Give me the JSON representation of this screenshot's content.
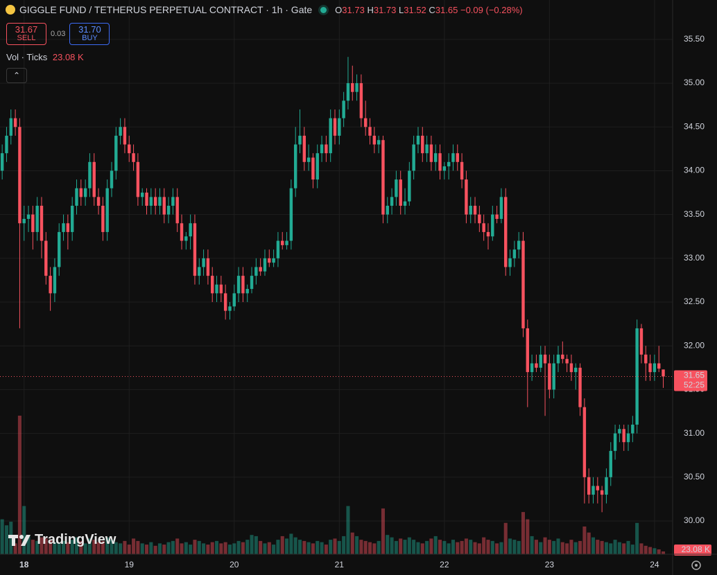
{
  "header": {
    "symbol": "GIGGLE FUND / TETHERUS PERPETUAL CONTRACT · 1h · Gate",
    "o_key": "O",
    "o": 31.73,
    "h_key": "H",
    "h": 31.73,
    "l_key": "L",
    "l": 31.52,
    "c_key": "C",
    "c": 31.65,
    "change": "−0.09 (−0.28%)"
  },
  "trade_panel": {
    "sell_price": "31.67",
    "sell": "SELL",
    "spread": "0.03",
    "buy_price": "31.70",
    "buy": "BUY"
  },
  "volume_legend": {
    "label": "Vol · Ticks",
    "value": "23.08 K"
  },
  "watermark": "TradingView",
  "chart_data": {
    "type": "candlestick",
    "up_color": "#22ab94",
    "down_color": "#f7525f",
    "grid": true,
    "ylim": [
      29.62,
      35.95
    ],
    "yticks": [
      {
        "value": 30,
        "label": "30.00"
      },
      {
        "value": 30.5,
        "label": "30.50"
      },
      {
        "value": 31,
        "label": "31.00"
      },
      {
        "value": 31.5,
        "label": "31.50"
      },
      {
        "value": 32,
        "label": "32.00"
      },
      {
        "value": 32.5,
        "label": "32.50"
      },
      {
        "value": 33,
        "label": "33.00"
      },
      {
        "value": 33.5,
        "label": "33.50"
      },
      {
        "value": 34,
        "label": "34.00"
      },
      {
        "value": 34.5,
        "label": "34.50"
      },
      {
        "value": 35,
        "label": "35.00"
      },
      {
        "value": 35.5,
        "label": "35.50"
      }
    ],
    "last_price": 31.65,
    "countdown": "52:25",
    "last_volume_label": "23.08 K",
    "categories": [
      null,
      null,
      null,
      null,
      null,
      "18",
      null,
      null,
      null,
      null,
      null,
      null,
      null,
      null,
      null,
      null,
      null,
      null,
      null,
      null,
      null,
      null,
      null,
      null,
      null,
      null,
      null,
      null,
      null,
      "19",
      null,
      null,
      null,
      null,
      null,
      null,
      null,
      null,
      null,
      null,
      null,
      null,
      null,
      null,
      null,
      null,
      null,
      null,
      null,
      null,
      null,
      null,
      null,
      "20",
      null,
      null,
      null,
      null,
      null,
      null,
      null,
      null,
      null,
      null,
      null,
      null,
      null,
      null,
      null,
      null,
      null,
      null,
      null,
      null,
      null,
      null,
      null,
      "21",
      null,
      null,
      null,
      null,
      null,
      null,
      null,
      null,
      null,
      null,
      null,
      null,
      null,
      null,
      null,
      null,
      null,
      null,
      null,
      null,
      null,
      null,
      null,
      "22",
      null,
      null,
      null,
      null,
      null,
      null,
      null,
      null,
      null,
      null,
      null,
      null,
      null,
      null,
      null,
      null,
      null,
      null,
      null,
      null,
      null,
      null,
      null,
      "23",
      null,
      null,
      null,
      null,
      null,
      null,
      null,
      null,
      null,
      null,
      null,
      null,
      null,
      null,
      null,
      null,
      null,
      null,
      null,
      null,
      null,
      null,
      null,
      "24",
      null,
      null
    ],
    "candles": [
      [
        34.0,
        34.3,
        33.9,
        34.2
      ],
      [
        34.2,
        34.5,
        34.1,
        34.4
      ],
      [
        34.4,
        34.7,
        34.3,
        34.6
      ],
      [
        34.6,
        34.7,
        34.4,
        34.5
      ],
      [
        34.5,
        34.6,
        32.2,
        33.4
      ],
      [
        33.4,
        33.6,
        33.2,
        33.45
      ],
      [
        33.45,
        33.6,
        33.3,
        33.5
      ],
      [
        33.5,
        33.6,
        33.1,
        33.3
      ],
      [
        33.3,
        33.7,
        33.2,
        33.6
      ],
      [
        33.6,
        33.7,
        33.0,
        33.2
      ],
      [
        33.2,
        33.3,
        32.7,
        32.8
      ],
      [
        32.8,
        32.9,
        32.4,
        32.6
      ],
      [
        32.6,
        33.0,
        32.5,
        32.9
      ],
      [
        32.9,
        33.4,
        32.8,
        33.3
      ],
      [
        33.3,
        33.5,
        33.2,
        33.4
      ],
      [
        33.4,
        33.5,
        33.1,
        33.3
      ],
      [
        33.3,
        33.7,
        33.2,
        33.6
      ],
      [
        33.6,
        33.9,
        33.5,
        33.8
      ],
      [
        33.8,
        33.9,
        33.6,
        33.7
      ],
      [
        33.7,
        33.9,
        33.6,
        33.8
      ],
      [
        33.8,
        34.2,
        33.7,
        34.1
      ],
      [
        34.1,
        34.2,
        33.6,
        33.7
      ],
      [
        33.7,
        33.8,
        33.5,
        33.6
      ],
      [
        33.6,
        33.7,
        33.2,
        33.3
      ],
      [
        33.3,
        33.9,
        33.2,
        33.8
      ],
      [
        33.8,
        34.1,
        33.7,
        34.0
      ],
      [
        34.0,
        34.5,
        33.9,
        34.4
      ],
      [
        34.4,
        34.6,
        34.3,
        34.5
      ],
      [
        34.5,
        34.6,
        34.2,
        34.3
      ],
      [
        34.3,
        34.4,
        34.1,
        34.2
      ],
      [
        34.2,
        34.3,
        34.0,
        34.1
      ],
      [
        34.1,
        34.2,
        33.6,
        33.7
      ],
      [
        33.7,
        33.8,
        33.6,
        33.75
      ],
      [
        33.75,
        33.8,
        33.5,
        33.6
      ],
      [
        33.6,
        33.8,
        33.5,
        33.7
      ],
      [
        33.7,
        33.8,
        33.5,
        33.6
      ],
      [
        33.6,
        33.8,
        33.5,
        33.7
      ],
      [
        33.7,
        33.8,
        33.4,
        33.5
      ],
      [
        33.5,
        33.7,
        33.4,
        33.6
      ],
      [
        33.6,
        33.8,
        33.5,
        33.7
      ],
      [
        33.7,
        33.8,
        33.3,
        33.4
      ],
      [
        33.4,
        33.5,
        33.1,
        33.2
      ],
      [
        33.2,
        33.3,
        33.1,
        33.25
      ],
      [
        33.25,
        33.5,
        33.1,
        33.4
      ],
      [
        33.4,
        33.5,
        32.7,
        32.8
      ],
      [
        32.8,
        33.0,
        32.7,
        32.9
      ],
      [
        32.9,
        33.1,
        32.8,
        33.0
      ],
      [
        33.0,
        33.1,
        32.7,
        32.8
      ],
      [
        32.8,
        32.9,
        32.5,
        32.6
      ],
      [
        32.6,
        32.8,
        32.5,
        32.7
      ],
      [
        32.7,
        32.8,
        32.5,
        32.6
      ],
      [
        32.6,
        32.7,
        32.3,
        32.4
      ],
      [
        32.4,
        32.5,
        32.3,
        32.45
      ],
      [
        32.45,
        32.7,
        32.4,
        32.6
      ],
      [
        32.6,
        32.9,
        32.5,
        32.8
      ],
      [
        32.8,
        32.9,
        32.5,
        32.6
      ],
      [
        32.6,
        32.7,
        32.5,
        32.65
      ],
      [
        32.65,
        32.9,
        32.6,
        32.8
      ],
      [
        32.8,
        33.0,
        32.7,
        32.9
      ],
      [
        32.9,
        33.0,
        32.8,
        32.85
      ],
      [
        32.85,
        33.1,
        32.8,
        33.0
      ],
      [
        33.0,
        33.1,
        32.9,
        32.95
      ],
      [
        32.95,
        33.1,
        32.9,
        33.0
      ],
      [
        33.0,
        33.3,
        32.9,
        33.2
      ],
      [
        33.2,
        33.3,
        33.1,
        33.15
      ],
      [
        33.15,
        33.3,
        33.1,
        33.2
      ],
      [
        33.2,
        33.9,
        33.1,
        33.8
      ],
      [
        33.8,
        34.5,
        33.7,
        34.3
      ],
      [
        34.3,
        34.7,
        34.2,
        34.4
      ],
      [
        34.4,
        34.5,
        34.0,
        34.1
      ],
      [
        34.1,
        34.3,
        34.0,
        34.15
      ],
      [
        34.15,
        34.2,
        33.8,
        33.9
      ],
      [
        33.9,
        34.3,
        33.8,
        34.2
      ],
      [
        34.2,
        34.4,
        34.1,
        34.3
      ],
      [
        34.3,
        34.4,
        34.1,
        34.2
      ],
      [
        34.2,
        34.7,
        34.1,
        34.6
      ],
      [
        34.6,
        34.7,
        34.3,
        34.4
      ],
      [
        34.4,
        34.7,
        34.3,
        34.6
      ],
      [
        34.6,
        34.9,
        34.5,
        34.8
      ],
      [
        34.8,
        35.3,
        34.7,
        35.0
      ],
      [
        35.0,
        35.2,
        34.8,
        34.9
      ],
      [
        34.9,
        35.1,
        34.8,
        35.0
      ],
      [
        35.0,
        35.1,
        34.5,
        34.6
      ],
      [
        34.6,
        34.8,
        34.4,
        34.5
      ],
      [
        34.5,
        34.6,
        34.3,
        34.4
      ],
      [
        34.4,
        34.5,
        34.2,
        34.3
      ],
      [
        34.3,
        34.4,
        34.2,
        34.35
      ],
      [
        34.35,
        34.4,
        33.4,
        33.5
      ],
      [
        33.5,
        33.7,
        33.4,
        33.6
      ],
      [
        33.6,
        33.8,
        33.5,
        33.7
      ],
      [
        33.7,
        34.0,
        33.6,
        33.9
      ],
      [
        33.9,
        34.0,
        33.5,
        33.6
      ],
      [
        33.6,
        33.8,
        33.5,
        33.65
      ],
      [
        33.65,
        34.1,
        33.6,
        34.0
      ],
      [
        34.0,
        34.4,
        33.9,
        34.3
      ],
      [
        34.3,
        34.5,
        34.2,
        34.4
      ],
      [
        34.4,
        34.5,
        34.1,
        34.2
      ],
      [
        34.2,
        34.4,
        34.1,
        34.3
      ],
      [
        34.3,
        34.4,
        34.0,
        34.1
      ],
      [
        34.1,
        34.3,
        34.0,
        34.2
      ],
      [
        34.2,
        34.3,
        33.9,
        34.0
      ],
      [
        34.0,
        34.1,
        33.9,
        34.05
      ],
      [
        34.05,
        34.2,
        33.9,
        34.1
      ],
      [
        34.1,
        34.3,
        34.0,
        34.2
      ],
      [
        34.2,
        34.3,
        34.0,
        34.1
      ],
      [
        34.1,
        34.2,
        33.8,
        33.9
      ],
      [
        33.9,
        34.0,
        33.4,
        33.5
      ],
      [
        33.5,
        33.7,
        33.4,
        33.6
      ],
      [
        33.6,
        33.7,
        33.4,
        33.5
      ],
      [
        33.5,
        33.6,
        33.3,
        33.4
      ],
      [
        33.4,
        33.5,
        33.2,
        33.3
      ],
      [
        33.3,
        33.4,
        33.1,
        33.25
      ],
      [
        33.25,
        33.6,
        33.2,
        33.5
      ],
      [
        33.5,
        33.6,
        33.4,
        33.45
      ],
      [
        33.45,
        33.8,
        33.4,
        33.7
      ],
      [
        33.7,
        33.8,
        32.8,
        32.9
      ],
      [
        32.9,
        33.1,
        32.8,
        33.0
      ],
      [
        33.0,
        33.2,
        32.9,
        33.1
      ],
      [
        33.1,
        33.3,
        33.0,
        33.2
      ],
      [
        33.2,
        33.3,
        32.1,
        32.2
      ],
      [
        32.2,
        32.3,
        31.3,
        31.7
      ],
      [
        31.7,
        31.9,
        31.6,
        31.8
      ],
      [
        31.8,
        31.9,
        31.7,
        31.75
      ],
      [
        31.75,
        32.0,
        31.7,
        31.9
      ],
      [
        31.9,
        32.0,
        31.2,
        31.8
      ],
      [
        31.8,
        31.9,
        31.4,
        31.5
      ],
      [
        31.5,
        31.9,
        31.4,
        31.8
      ],
      [
        31.8,
        32.0,
        31.7,
        31.9
      ],
      [
        31.9,
        32.05,
        31.8,
        31.85
      ],
      [
        31.85,
        31.9,
        31.7,
        31.8
      ],
      [
        31.8,
        31.9,
        31.6,
        31.7
      ],
      [
        31.7,
        31.8,
        31.5,
        31.75
      ],
      [
        31.75,
        31.8,
        31.2,
        31.3
      ],
      [
        31.3,
        31.4,
        30.2,
        30.5
      ],
      [
        30.5,
        30.6,
        30.2,
        30.3
      ],
      [
        30.3,
        30.5,
        30.2,
        30.4
      ],
      [
        30.4,
        30.5,
        30.2,
        30.35
      ],
      [
        30.35,
        30.4,
        30.1,
        30.3
      ],
      [
        30.3,
        30.6,
        30.2,
        30.5
      ],
      [
        30.5,
        30.9,
        30.4,
        30.8
      ],
      [
        30.8,
        31.1,
        30.7,
        31.0
      ],
      [
        31.0,
        31.1,
        30.9,
        31.05
      ],
      [
        31.05,
        31.1,
        30.8,
        30.9
      ],
      [
        30.9,
        31.1,
        30.8,
        31.0
      ],
      [
        31.0,
        31.2,
        30.9,
        31.1
      ],
      [
        31.1,
        32.3,
        31.0,
        32.2
      ],
      [
        32.2,
        32.25,
        31.8,
        31.9
      ],
      [
        31.9,
        32.0,
        31.6,
        31.8
      ],
      [
        31.8,
        31.9,
        31.6,
        31.7
      ],
      [
        31.7,
        31.9,
        31.6,
        31.8
      ],
      [
        31.8,
        32.0,
        31.7,
        31.74
      ],
      [
        31.73,
        31.73,
        31.52,
        31.65
      ]
    ],
    "volume": [
      290,
      240,
      270,
      90,
      1150,
      400,
      150,
      120,
      110,
      140,
      130,
      120,
      100,
      90,
      110,
      100,
      120,
      140,
      110,
      90,
      130,
      120,
      100,
      110,
      140,
      120,
      100,
      90,
      110,
      80,
      130,
      110,
      90,
      80,
      100,
      70,
      90,
      80,
      100,
      110,
      130,
      90,
      100,
      80,
      120,
      110,
      90,
      80,
      100,
      110,
      90,
      100,
      80,
      90,
      110,
      100,
      120,
      160,
      150,
      110,
      90,
      100,
      80,
      120,
      150,
      130,
      170,
      140,
      120,
      110,
      100,
      90,
      110,
      100,
      80,
      120,
      130,
      110,
      150,
      400,
      180,
      150,
      120,
      110,
      100,
      90,
      110,
      380,
      160,
      140,
      110,
      130,
      120,
      140,
      120,
      100,
      90,
      110,
      130,
      150,
      120,
      110,
      90,
      120,
      100,
      110,
      130,
      120,
      100,
      90,
      140,
      120,
      110,
      90,
      100,
      260,
      130,
      120,
      110,
      350,
      290,
      150,
      120,
      100,
      140,
      120,
      110,
      130,
      100,
      90,
      120,
      100,
      110,
      230,
      180,
      140,
      120,
      110,
      100,
      90,
      120,
      100,
      90,
      110,
      80,
      260,
      90,
      70,
      60,
      50,
      40,
      23.08
    ]
  }
}
